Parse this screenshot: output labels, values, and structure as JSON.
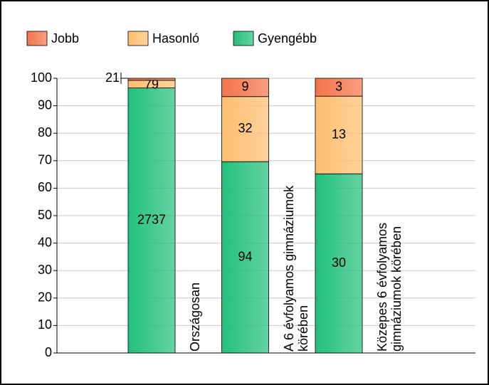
{
  "chart_data": {
    "type": "stacked_percent_bar",
    "categories": [
      "Országosan",
      "A 6 évfolyamos gimnáziumok körében",
      "Közepes 6 évfolyamos gimnáziumok körében"
    ],
    "series": [
      {
        "name": "Jobb",
        "color": "#f4744a",
        "values": [
          21,
          9,
          3
        ]
      },
      {
        "name": "Hasonló",
        "color": "#fdbf6f",
        "values": [
          79,
          32,
          13
        ]
      },
      {
        "name": "Gyengébb",
        "color": "#22c07a",
        "values": [
          2737,
          94,
          30
        ]
      }
    ],
    "ylim": [
      0,
      100
    ],
    "yticks": [
      0,
      10,
      20,
      30,
      40,
      50,
      60,
      70,
      80,
      90,
      100
    ],
    "grid": true
  }
}
